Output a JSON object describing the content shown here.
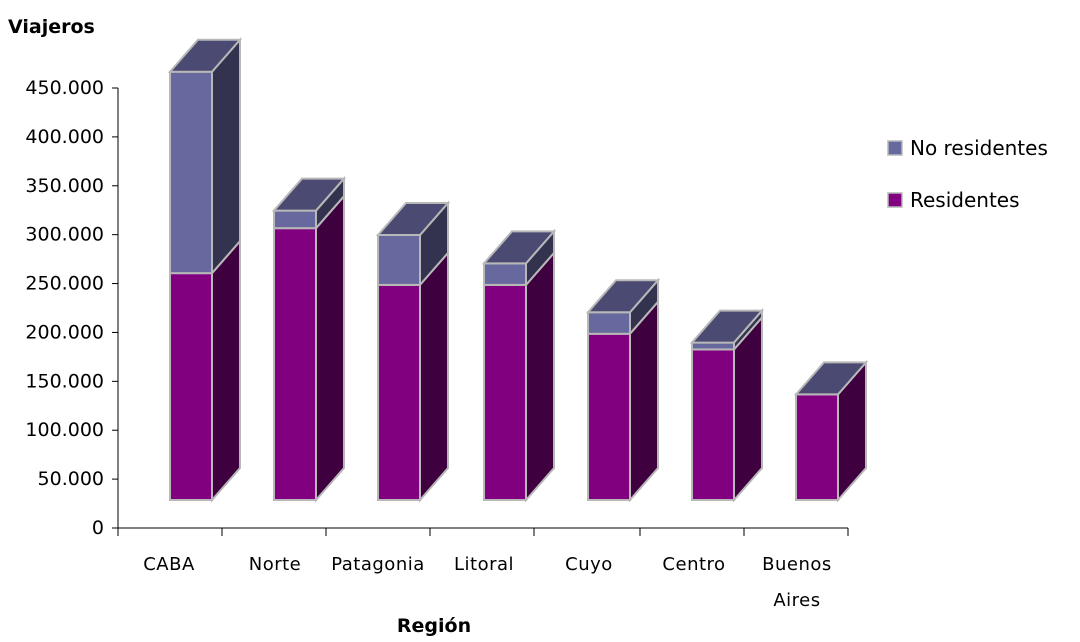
{
  "chart_data": {
    "type": "bar",
    "stacked": true,
    "three_d": true,
    "ylabel": "Viajeros",
    "xlabel": "Región",
    "ylim": [
      0,
      450000
    ],
    "yticks": [
      "0",
      "50.000",
      "100.000",
      "150.000",
      "200.000",
      "250.000",
      "300.000",
      "350.000",
      "400.000",
      "450.000"
    ],
    "categories": [
      {
        "lines": [
          "CABA"
        ]
      },
      {
        "lines": [
          "Norte"
        ]
      },
      {
        "lines": [
          "Patagonia"
        ]
      },
      {
        "lines": [
          "Litoral"
        ]
      },
      {
        "lines": [
          "Cuyo"
        ]
      },
      {
        "lines": [
          "Centro"
        ]
      },
      {
        "lines": [
          "Buenos",
          "Aires"
        ]
      }
    ],
    "series": [
      {
        "name": "Residentes",
        "values": [
          232000,
          278000,
          220000,
          220000,
          170000,
          154000,
          108000
        ],
        "color": "#800080",
        "side_color": "#3f0040"
      },
      {
        "name": "No residentes",
        "values": [
          206000,
          18000,
          51000,
          22000,
          22000,
          7000,
          0
        ],
        "color": "#67689d",
        "side_color": "#33334f"
      }
    ],
    "top_color": "#4a4a72",
    "grid": false,
    "legend_position": "right",
    "legend_order": [
      "No residentes",
      "Residentes"
    ]
  }
}
